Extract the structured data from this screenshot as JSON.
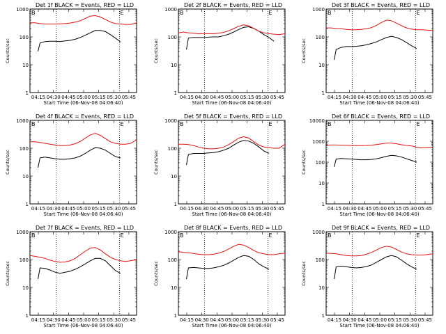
{
  "colors": {
    "events": "#000000",
    "lld": "#e01010",
    "frame": "#000000"
  },
  "shared": {
    "xlabel": "Start Time (06-Nov-08 04:06:40)",
    "ylabel": "Counts/sec",
    "xticks": [
      "04:15",
      "04:30",
      "04:45",
      "05:00",
      "05:15",
      "05:30",
      "05:45"
    ],
    "x_range_min": [
      0,
      106
    ],
    "marker_B": "B",
    "marker_E": "E"
  },
  "chart_data": [
    {
      "type": "line",
      "title": "Det 1f BLACK = Events, RED = LLD",
      "ylim": [
        1,
        1000
      ],
      "ymax_label": "1000",
      "yticks": [
        "1",
        "10",
        "100",
        "1000"
      ],
      "markers_min": [
        26,
        89
      ],
      "series": [
        {
          "name": "Events",
          "x": [
            8,
            10,
            15,
            20,
            25,
            30,
            35,
            40,
            45,
            50,
            55,
            60,
            65,
            70,
            75,
            80,
            85,
            88,
            90
          ],
          "values": [
            30,
            60,
            68,
            70,
            70,
            68,
            72,
            75,
            82,
            95,
            115,
            140,
            170,
            170,
            155,
            120,
            90,
            75,
            65
          ]
        },
        {
          "name": "LLD",
          "x": [
            0,
            5,
            10,
            15,
            20,
            25,
            30,
            35,
            40,
            45,
            50,
            55,
            60,
            65,
            70,
            75,
            80,
            85,
            90,
            95,
            100,
            106
          ],
          "values": [
            320,
            320,
            300,
            290,
            290,
            290,
            295,
            300,
            315,
            340,
            380,
            460,
            560,
            580,
            520,
            420,
            340,
            300,
            290,
            280,
            280,
            320
          ]
        }
      ]
    },
    {
      "type": "line",
      "title": "Det 2f BLACK = Events, RED = LLD",
      "ylim": [
        1,
        1000
      ],
      "ymax_label": "1000",
      "yticks": [
        "1",
        "10",
        "100",
        "1000"
      ],
      "markers_min": [
        26,
        89
      ],
      "series": [
        {
          "name": "Events",
          "x": [
            8,
            10,
            15,
            20,
            25,
            30,
            35,
            40,
            45,
            50,
            55,
            60,
            65,
            70,
            75,
            80,
            85,
            90,
            95
          ],
          "values": [
            35,
            90,
            95,
            95,
            95,
            98,
            100,
            100,
            110,
            125,
            150,
            185,
            220,
            230,
            200,
            160,
            120,
            95,
            70
          ]
        },
        {
          "name": "LLD",
          "x": [
            0,
            5,
            10,
            15,
            20,
            25,
            30,
            35,
            40,
            45,
            50,
            55,
            60,
            65,
            70,
            75,
            80,
            85,
            90,
            95,
            100,
            106
          ],
          "values": [
            140,
            150,
            140,
            135,
            130,
            130,
            130,
            130,
            135,
            145,
            165,
            200,
            240,
            270,
            250,
            200,
            160,
            140,
            130,
            125,
            120,
            130
          ]
        }
      ]
    },
    {
      "type": "line",
      "title": "Det 3f BLACK = Events, RED = LLD",
      "ylim": [
        1,
        1000
      ],
      "ymax_label": "1000",
      "yticks": [
        "1",
        "10",
        "100",
        "1000"
      ],
      "markers_min": [
        26,
        89
      ],
      "series": [
        {
          "name": "Events",
          "x": [
            8,
            10,
            15,
            20,
            25,
            30,
            35,
            40,
            45,
            50,
            55,
            60,
            65,
            70,
            75,
            80,
            85,
            90
          ],
          "values": [
            15,
            35,
            42,
            45,
            45,
            46,
            48,
            52,
            58,
            66,
            80,
            95,
            105,
            95,
            80,
            62,
            48,
            38
          ]
        },
        {
          "name": "LLD",
          "x": [
            0,
            5,
            10,
            15,
            20,
            25,
            30,
            35,
            40,
            45,
            50,
            55,
            60,
            65,
            70,
            75,
            80,
            85,
            90,
            95,
            100,
            106
          ],
          "values": [
            210,
            210,
            200,
            195,
            185,
            180,
            180,
            185,
            195,
            215,
            260,
            330,
            400,
            380,
            310,
            250,
            210,
            190,
            180,
            180,
            175,
            170
          ]
        }
      ]
    },
    {
      "type": "line",
      "title": "Det 4f BLACK = Events, RED = LLD",
      "ylim": [
        1,
        1000
      ],
      "ymax_label": "1000",
      "yticks": [
        "1",
        "10",
        "100",
        "1000"
      ],
      "markers_min": [
        26,
        89
      ],
      "series": [
        {
          "name": "Events",
          "x": [
            8,
            10,
            15,
            20,
            25,
            30,
            35,
            40,
            45,
            50,
            55,
            60,
            65,
            70,
            75,
            80,
            85,
            90
          ],
          "values": [
            20,
            45,
            48,
            45,
            42,
            40,
            40,
            42,
            45,
            52,
            65,
            85,
            105,
            100,
            85,
            65,
            50,
            45
          ]
        },
        {
          "name": "LLD",
          "x": [
            0,
            5,
            10,
            15,
            20,
            25,
            30,
            35,
            40,
            45,
            50,
            55,
            60,
            65,
            70,
            75,
            80,
            85,
            90,
            95,
            100,
            106
          ],
          "values": [
            170,
            170,
            160,
            150,
            140,
            130,
            125,
            125,
            130,
            145,
            175,
            230,
            300,
            340,
            290,
            220,
            170,
            150,
            140,
            140,
            150,
            200
          ]
        }
      ]
    },
    {
      "type": "line",
      "title": "Det 5f BLACK = Events, RED = LLD",
      "ylim": [
        1,
        1000
      ],
      "ymax_label": "1000",
      "yticks": [
        "1",
        "10",
        "100",
        "1000"
      ],
      "markers_min": [
        26,
        89
      ],
      "series": [
        {
          "name": "Events",
          "x": [
            8,
            10,
            15,
            20,
            25,
            30,
            35,
            40,
            45,
            50,
            55,
            60,
            65,
            70,
            75,
            80,
            85,
            90
          ],
          "values": [
            25,
            60,
            65,
            65,
            65,
            68,
            70,
            75,
            85,
            100,
            130,
            165,
            190,
            180,
            150,
            110,
            80,
            65
          ]
        },
        {
          "name": "LLD",
          "x": [
            0,
            5,
            10,
            15,
            20,
            25,
            30,
            35,
            40,
            45,
            50,
            55,
            60,
            65,
            70,
            75,
            80,
            85,
            90,
            95,
            100,
            106
          ],
          "values": [
            140,
            140,
            135,
            125,
            110,
            100,
            95,
            95,
            100,
            110,
            135,
            175,
            230,
            260,
            230,
            170,
            130,
            110,
            105,
            100,
            100,
            140
          ]
        }
      ]
    },
    {
      "type": "line",
      "title": "Det 6f BLACK = Events, RED = LLD",
      "ylim": [
        1,
        10000
      ],
      "ymax_label": "10000",
      "yticks": [
        "1",
        "10",
        "100",
        "1000",
        "10000"
      ],
      "markers_min": [
        26,
        89
      ],
      "series": [
        {
          "name": "Events",
          "x": [
            8,
            10,
            15,
            20,
            25,
            30,
            35,
            40,
            45,
            50,
            55,
            60,
            65,
            70,
            75,
            80,
            85,
            90
          ],
          "values": [
            60,
            140,
            150,
            145,
            140,
            135,
            130,
            130,
            135,
            145,
            165,
            190,
            210,
            200,
            175,
            145,
            120,
            100
          ]
        },
        {
          "name": "LLD",
          "x": [
            0,
            5,
            10,
            15,
            20,
            25,
            30,
            35,
            40,
            45,
            50,
            55,
            60,
            65,
            70,
            75,
            80,
            85,
            90,
            95,
            100,
            106
          ],
          "values": [
            650,
            660,
            660,
            650,
            640,
            630,
            620,
            620,
            630,
            650,
            690,
            750,
            820,
            820,
            760,
            680,
            630,
            600,
            520,
            480,
            500,
            520
          ]
        }
      ]
    },
    {
      "type": "line",
      "title": "Det 7f BLACK = Events, RED = LLD",
      "ylim": [
        1,
        1000
      ],
      "ymax_label": "1000",
      "yticks": [
        "1",
        "10",
        "100",
        "1000"
      ],
      "markers_min": [
        26,
        89
      ],
      "series": [
        {
          "name": "Events",
          "x": [
            8,
            10,
            15,
            20,
            25,
            30,
            35,
            40,
            45,
            50,
            55,
            60,
            65,
            70,
            75,
            80,
            85,
            90
          ],
          "values": [
            20,
            50,
            48,
            42,
            35,
            32,
            35,
            38,
            45,
            55,
            70,
            90,
            110,
            110,
            90,
            60,
            40,
            32
          ]
        },
        {
          "name": "LLD",
          "x": [
            0,
            5,
            10,
            15,
            20,
            25,
            30,
            35,
            40,
            45,
            50,
            55,
            60,
            65,
            70,
            75,
            80,
            85,
            90,
            95,
            100,
            106
          ],
          "values": [
            140,
            130,
            120,
            110,
            95,
            85,
            80,
            82,
            90,
            110,
            150,
            200,
            260,
            270,
            220,
            160,
            120,
            100,
            90,
            85,
            90,
            100
          ]
        }
      ]
    },
    {
      "type": "line",
      "title": "Det 8f BLACK = Events, RED = LLD",
      "ylim": [
        1,
        1000
      ],
      "ymax_label": "1000",
      "yticks": [
        "1",
        "10",
        "100",
        "1000"
      ],
      "markers_min": [
        26,
        89
      ],
      "series": [
        {
          "name": "Events",
          "x": [
            8,
            10,
            15,
            20,
            25,
            30,
            35,
            40,
            45,
            50,
            55,
            60,
            65,
            70,
            75,
            80,
            85,
            90
          ],
          "values": [
            20,
            50,
            52,
            50,
            48,
            48,
            50,
            55,
            62,
            75,
            95,
            120,
            140,
            130,
            100,
            70,
            55,
            45
          ]
        },
        {
          "name": "LLD",
          "x": [
            0,
            5,
            10,
            15,
            20,
            25,
            30,
            35,
            40,
            45,
            50,
            55,
            60,
            65,
            70,
            75,
            80,
            85,
            90,
            95,
            100,
            106
          ],
          "values": [
            190,
            180,
            175,
            165,
            155,
            150,
            150,
            155,
            170,
            195,
            240,
            300,
            350,
            330,
            270,
            210,
            175,
            160,
            150,
            150,
            160,
            170
          ]
        }
      ]
    },
    {
      "type": "line",
      "title": "Det 9f BLACK = Events, RED = LLD",
      "ylim": [
        1,
        1000
      ],
      "ymax_label": "1000",
      "yticks": [
        "1",
        "10",
        "100",
        "1000"
      ],
      "markers_min": [
        26,
        89
      ],
      "series": [
        {
          "name": "Events",
          "x": [
            8,
            10,
            15,
            20,
            25,
            30,
            35,
            40,
            45,
            50,
            55,
            60,
            65,
            70,
            75,
            80,
            85,
            90
          ],
          "values": [
            20,
            55,
            58,
            55,
            52,
            50,
            52,
            56,
            64,
            80,
            100,
            125,
            140,
            125,
            95,
            70,
            55,
            45
          ]
        },
        {
          "name": "LLD",
          "x": [
            0,
            5,
            10,
            15,
            20,
            25,
            30,
            35,
            40,
            45,
            50,
            55,
            60,
            65,
            70,
            75,
            80,
            85,
            90,
            95,
            100,
            106
          ],
          "values": [
            170,
            165,
            160,
            150,
            140,
            135,
            135,
            140,
            155,
            180,
            220,
            270,
            300,
            280,
            230,
            185,
            160,
            150,
            145,
            145,
            150,
            160
          ]
        }
      ]
    }
  ]
}
